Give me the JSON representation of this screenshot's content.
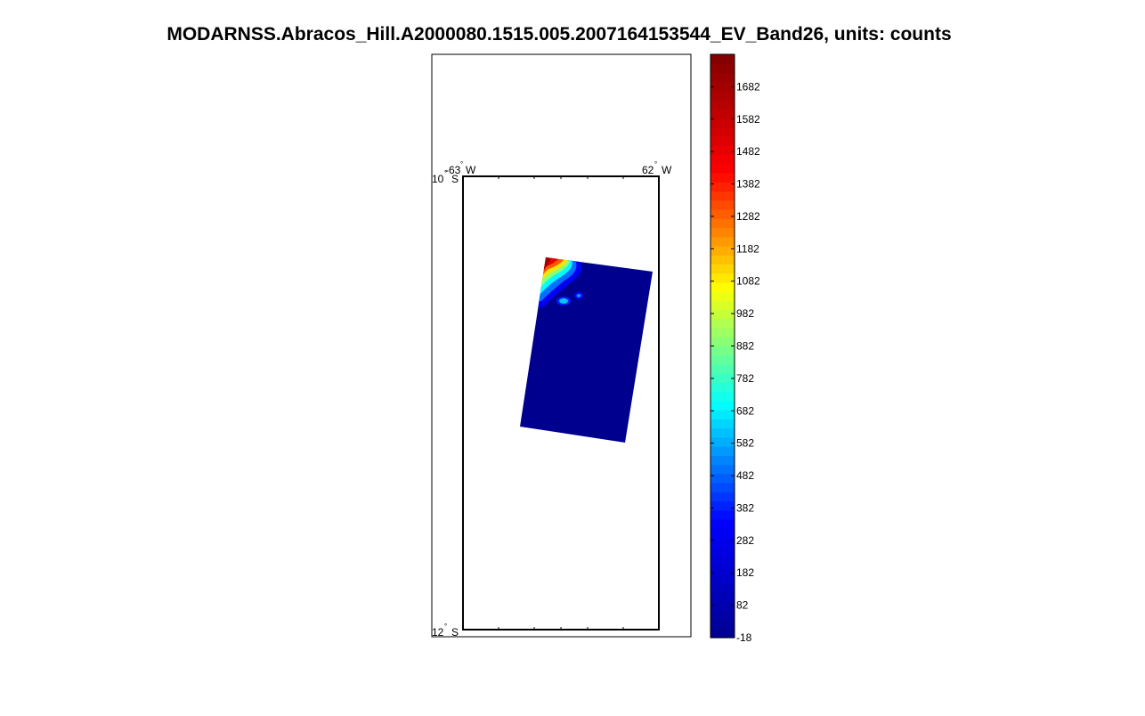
{
  "title": "MODARNSS.Abracos_Hill.A2000080.1515.005.2007164153544_EV_Band26, units: counts",
  "chart_data": {
    "type": "heatmap",
    "title": "MODARNSS.Abracos_Hill.A2000080.1515.005.2007164153544_EV_Band26, units: counts",
    "map": {
      "lon_range": [
        -63,
        -62
      ],
      "lat_range": [
        -12,
        -10
      ],
      "lon_labels": [
        {
          "deg": "-63",
          "suffix": "W"
        },
        {
          "deg": "62",
          "suffix": "W"
        }
      ],
      "lat_labels": [
        {
          "deg": "10",
          "suffix": "S"
        },
        {
          "deg": "12",
          "suffix": "S"
        }
      ],
      "degree_symbol": "°"
    },
    "colorbar": {
      "min": -18,
      "max": 1782,
      "ticks": [
        -18,
        82,
        182,
        282,
        382,
        482,
        582,
        682,
        782,
        882,
        982,
        1082,
        1182,
        1282,
        1382,
        1482,
        1582,
        1682
      ],
      "colormap": "jet",
      "colors": [
        "#00008F",
        "#0000FF",
        "#00FFFF",
        "#FFFF00",
        "#FF0000",
        "#800000"
      ]
    },
    "swath": {
      "background_value": -18,
      "high_values": [
        1682,
        1500,
        1300,
        1100,
        900,
        700,
        500,
        300
      ]
    }
  }
}
